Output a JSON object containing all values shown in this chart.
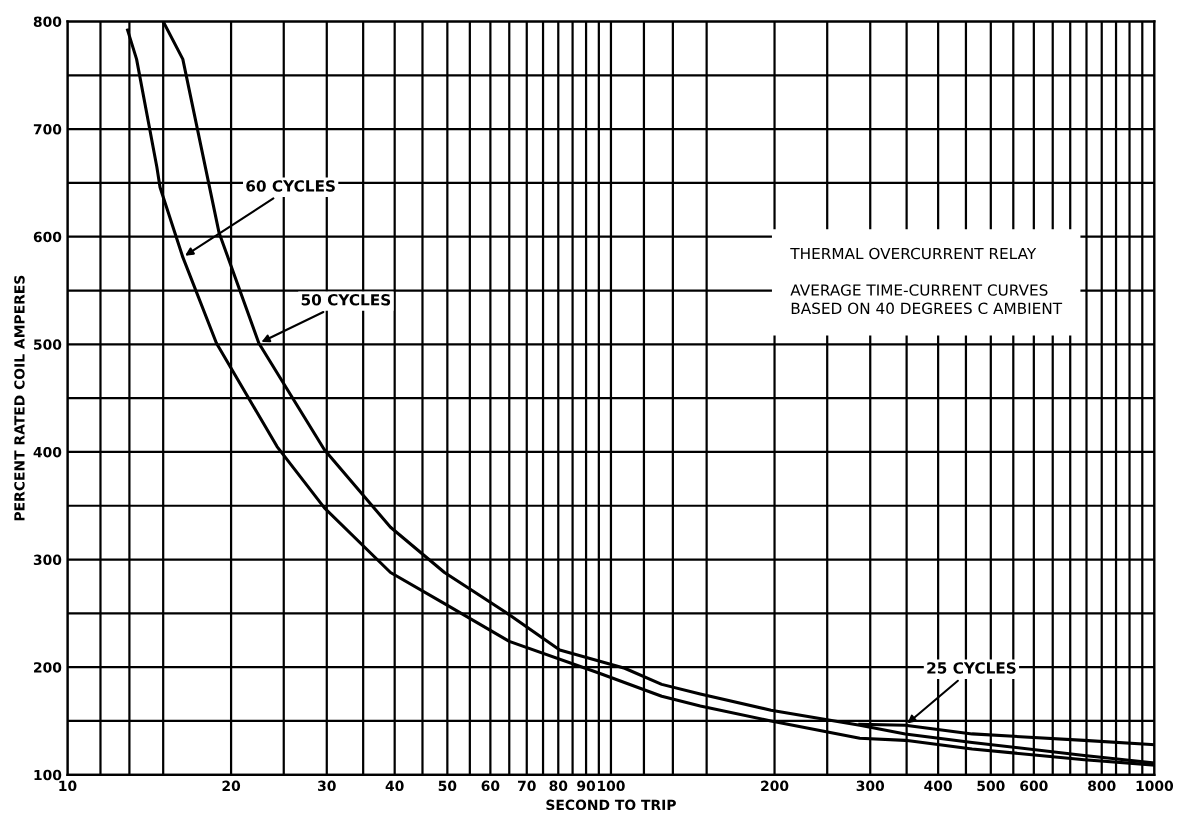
{
  "chart_data": {
    "type": "line",
    "xlabel": "SECOND TO TRIP",
    "ylabel": "PERCENT RATED COIL AMPERES",
    "log": "x",
    "xlim": [
      10,
      1000
    ],
    "ylim": [
      100,
      800
    ],
    "xticks": [
      10,
      {
        "value": 11.5,
        "label": null
      },
      {
        "value": 13,
        "label": null
      },
      {
        "value": 15,
        "label": null
      },
      20,
      {
        "value": 25,
        "label": null
      },
      30,
      {
        "value": 35,
        "label": null
      },
      40,
      {
        "value": 45,
        "label": null
      },
      50,
      {
        "value": 55,
        "label": null
      },
      60,
      {
        "value": 65,
        "label": null
      },
      70,
      {
        "value": 75,
        "label": null
      },
      80,
      {
        "value": 85,
        "label": null
      },
      90,
      {
        "value": 95,
        "label": null
      },
      100,
      {
        "value": 115,
        "label": null
      },
      {
        "value": 130,
        "label": null
      },
      {
        "value": 150,
        "label": null
      },
      200,
      {
        "value": 250,
        "label": null
      },
      300,
      {
        "value": 350,
        "label": null
      },
      400,
      {
        "value": 450,
        "label": null
      },
      500,
      {
        "value": 550,
        "label": null
      },
      600,
      {
        "value": 650,
        "label": null
      },
      {
        "value": 700,
        "label": null
      },
      {
        "value": 750,
        "label": null
      },
      800,
      {
        "value": 850,
        "label": null
      },
      {
        "value": 900,
        "label": null
      },
      {
        "value": 950,
        "label": null
      },
      1000
    ],
    "yticks": [
      100,
      {
        "value": 150,
        "label": null
      },
      200,
      {
        "value": 250,
        "label": null
      },
      300,
      {
        "value": 350,
        "label": null
      },
      400,
      {
        "value": 450,
        "label": null
      },
      500,
      {
        "value": 550,
        "label": null
      },
      600,
      {
        "value": 650,
        "label": null
      },
      700,
      {
        "value": 750,
        "label": null
      },
      800
    ],
    "grid": true,
    "marker": "none",
    "line_style": "solid",
    "series": [
      {
        "color": "#000000",
        "x": [
          12.9,
          13.4,
          14.6,
          14.8,
          16.3,
          18.8,
          24.3,
          29.7,
          39.3,
          49.4,
          65,
          94.4,
          124,
          146,
          197,
          287,
          348,
          462,
          743,
          1000
        ],
        "values": [
          792,
          765,
          665,
          646,
          581,
          501,
          405,
          348,
          288,
          259,
          224,
          195,
          173,
          164,
          150,
          134,
          132,
          124,
          114,
          109
        ]
      },
      {
        "color": "#000000",
        "x": [
          15,
          16.3,
          19,
          22.5,
          29.7,
          39.3,
          49.4,
          64,
          80.5,
          106,
          124,
          146,
          197,
          287,
          348,
          462,
          743,
          1000
        ],
        "values": [
          800,
          765,
          604,
          501,
          402,
          330,
          288,
          251,
          216,
          199,
          184,
          175,
          160,
          146,
          138,
          130,
          118,
          111
        ]
      },
      {
        "color": "#000000",
        "x": [
          287,
          348,
          462,
          743,
          1000
        ],
        "values": [
          147,
          146,
          138,
          132,
          128
        ]
      }
    ],
    "annotations": [
      {
        "text": "60 CYCLES",
        "x": 16.3,
        "y": 581
      },
      {
        "text": "50 CYCLES",
        "x": 22.5,
        "y": 501
      },
      {
        "text": "25 CYCLES",
        "x": 348,
        "y": 146
      },
      "THERMAL OVERCURRENT RELAY",
      "AVERAGE TIME-CURRENT CURVES\nBASED ON 40 DEGREES C AMBIENT"
    ]
  }
}
